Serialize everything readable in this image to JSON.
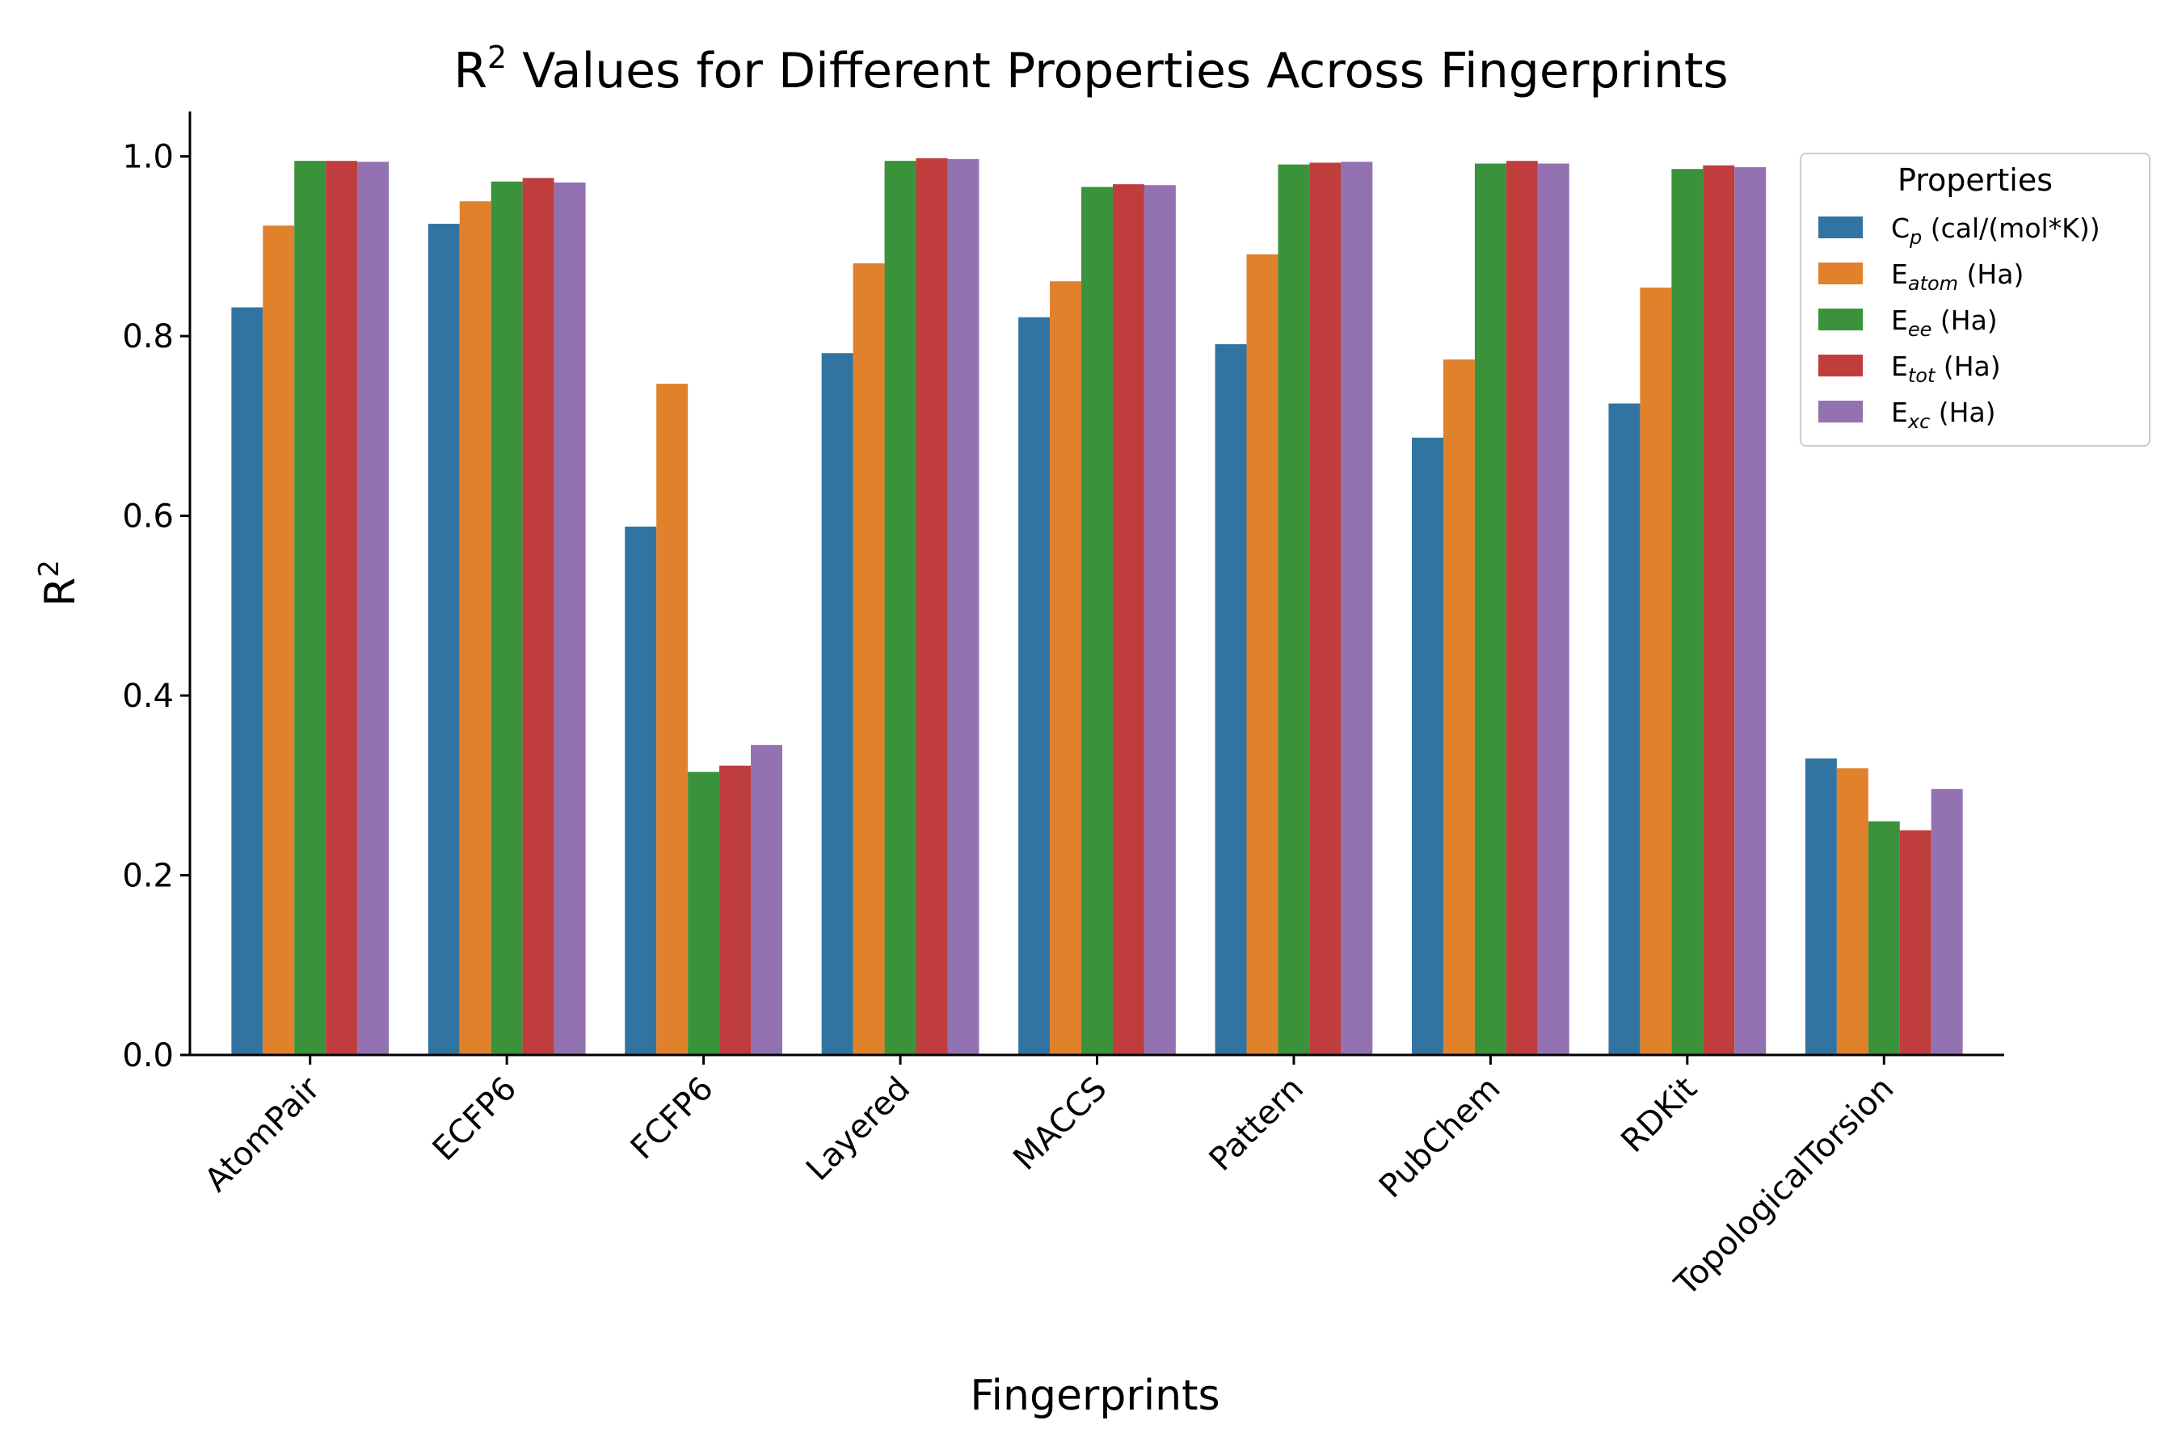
{
  "chart_data": {
    "type": "bar",
    "title": {
      "prefix": "R",
      "sup": "2",
      "rest": " Values for Different Properties Across Fingerprints"
    },
    "xlabel": "Fingerprints",
    "ylabel": {
      "base": "R",
      "sup": "2"
    },
    "ylim": [
      0,
      1.05
    ],
    "yticks": [
      "0.0",
      "0.2",
      "0.4",
      "0.6",
      "0.8",
      "1.0"
    ],
    "grid": false,
    "legend_placement": "top-right",
    "legend_title": "Properties",
    "categories": [
      "AtomPair",
      "ECFP6",
      "FCFP6",
      "Layered",
      "MACCS",
      "Pattern",
      "PubChem",
      "RDKit",
      "TopologicalTorsion"
    ],
    "series": [
      {
        "name": "Cp (cal/(mol*K))",
        "label_parts": [
          "C",
          "p",
          " (cal/(mol*K))"
        ],
        "color": "#3274a1",
        "values": [
          0.832,
          0.925,
          0.588,
          0.781,
          0.821,
          0.791,
          0.687,
          0.725,
          0.33
        ]
      },
      {
        "name": "Eatom (Ha)",
        "label_parts": [
          "E",
          "atom",
          " (Ha)"
        ],
        "color": "#e1812c",
        "values": [
          0.923,
          0.95,
          0.747,
          0.881,
          0.861,
          0.891,
          0.774,
          0.854,
          0.319
        ]
      },
      {
        "name": "Eee (Ha)",
        "label_parts": [
          "E",
          "ee",
          " (Ha)"
        ],
        "color": "#3a923a",
        "values": [
          0.995,
          0.972,
          0.315,
          0.995,
          0.966,
          0.991,
          0.992,
          0.986,
          0.26
        ]
      },
      {
        "name": "Etot (Ha)",
        "label_parts": [
          "E",
          "tot",
          " (Ha)"
        ],
        "color": "#c03d3e",
        "values": [
          0.995,
          0.976,
          0.322,
          0.998,
          0.969,
          0.993,
          0.995,
          0.99,
          0.25
        ]
      },
      {
        "name": "Exc (Ha)",
        "label_parts": [
          "E",
          "xc",
          " (Ha)"
        ],
        "color": "#9372b2",
        "values": [
          0.994,
          0.971,
          0.345,
          0.997,
          0.968,
          0.994,
          0.992,
          0.988,
          0.296
        ]
      }
    ]
  }
}
